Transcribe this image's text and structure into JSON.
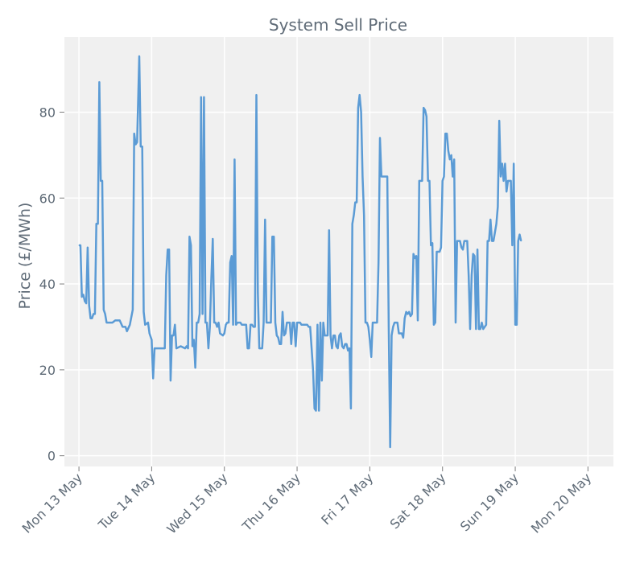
{
  "chart_data": {
    "type": "line",
    "title": "System Sell Price",
    "xlabel": "",
    "ylabel": "Price (£/MWh)",
    "ylim": [
      -2.5,
      97.5
    ],
    "yticks": [
      0,
      20,
      40,
      60,
      80
    ],
    "xlim": [
      -0.2,
      7.35
    ],
    "xticks": [
      {
        "value": 0,
        "label": "Mon 13 May"
      },
      {
        "value": 1,
        "label": "Tue 14 May"
      },
      {
        "value": 2,
        "label": "Wed 15 May"
      },
      {
        "value": 3,
        "label": "Thu 16 May"
      },
      {
        "value": 4,
        "label": "Fri 17 May"
      },
      {
        "value": 5,
        "label": "Sat 18 May"
      },
      {
        "value": 6,
        "label": "Sun 19 May"
      },
      {
        "value": 7,
        "label": "Mon 20 May"
      }
    ],
    "grid": true,
    "series": [
      {
        "name": "System Sell Price",
        "color": "#5b9bd5",
        "points": [
          [
            0.0,
            49
          ],
          [
            0.02,
            49
          ],
          [
            0.04,
            37
          ],
          [
            0.06,
            37.5
          ],
          [
            0.08,
            36
          ],
          [
            0.1,
            35.5
          ],
          [
            0.12,
            48.5
          ],
          [
            0.14,
            35
          ],
          [
            0.16,
            32
          ],
          [
            0.18,
            32
          ],
          [
            0.2,
            33
          ],
          [
            0.22,
            33
          ],
          [
            0.24,
            54
          ],
          [
            0.26,
            54
          ],
          [
            0.28,
            87
          ],
          [
            0.3,
            64
          ],
          [
            0.32,
            64
          ],
          [
            0.34,
            34
          ],
          [
            0.36,
            33
          ],
          [
            0.38,
            31
          ],
          [
            0.42,
            31
          ],
          [
            0.46,
            31
          ],
          [
            0.5,
            31.5
          ],
          [
            0.56,
            31.5
          ],
          [
            0.6,
            30
          ],
          [
            0.64,
            30
          ],
          [
            0.66,
            29
          ],
          [
            0.7,
            30.5
          ],
          [
            0.74,
            34
          ],
          [
            0.76,
            75
          ],
          [
            0.78,
            72.5
          ],
          [
            0.8,
            73
          ],
          [
            0.83,
            93
          ],
          [
            0.85,
            72
          ],
          [
            0.87,
            72
          ],
          [
            0.89,
            33.5
          ],
          [
            0.91,
            30.5
          ],
          [
            0.95,
            31
          ],
          [
            0.97,
            28.5
          ],
          [
            1.0,
            27
          ],
          [
            1.02,
            18
          ],
          [
            1.04,
            25
          ],
          [
            1.1,
            25
          ],
          [
            1.16,
            25
          ],
          [
            1.18,
            25
          ],
          [
            1.2,
            42
          ],
          [
            1.22,
            48
          ],
          [
            1.24,
            48
          ],
          [
            1.26,
            17.5
          ],
          [
            1.28,
            28
          ],
          [
            1.3,
            28
          ],
          [
            1.32,
            30.5
          ],
          [
            1.34,
            25
          ],
          [
            1.4,
            25.5
          ],
          [
            1.46,
            25
          ],
          [
            1.48,
            25.5
          ],
          [
            1.5,
            25
          ],
          [
            1.52,
            51
          ],
          [
            1.54,
            49
          ],
          [
            1.56,
            25.5
          ],
          [
            1.58,
            27
          ],
          [
            1.6,
            20.5
          ],
          [
            1.62,
            31
          ],
          [
            1.64,
            31
          ],
          [
            1.66,
            33
          ],
          [
            1.68,
            83.5
          ],
          [
            1.7,
            33
          ],
          [
            1.72,
            83.5
          ],
          [
            1.74,
            31
          ],
          [
            1.76,
            31
          ],
          [
            1.78,
            25
          ],
          [
            1.8,
            30
          ],
          [
            1.82,
            41
          ],
          [
            1.84,
            50.5
          ],
          [
            1.86,
            31
          ],
          [
            1.88,
            31
          ],
          [
            1.9,
            30
          ],
          [
            1.92,
            31
          ],
          [
            1.94,
            28.5
          ],
          [
            1.98,
            28
          ],
          [
            2.0,
            28.5
          ],
          [
            2.02,
            30.5
          ],
          [
            2.04,
            31
          ],
          [
            2.06,
            31
          ],
          [
            2.08,
            45
          ],
          [
            2.1,
            46.5
          ],
          [
            2.12,
            30.5
          ],
          [
            2.14,
            69
          ],
          [
            2.16,
            30.5
          ],
          [
            2.18,
            31
          ],
          [
            2.22,
            31
          ],
          [
            2.24,
            30.5
          ],
          [
            2.26,
            30.5
          ],
          [
            2.3,
            30.5
          ],
          [
            2.32,
            25
          ],
          [
            2.34,
            25
          ],
          [
            2.36,
            30.5
          ],
          [
            2.38,
            30.5
          ],
          [
            2.4,
            30
          ],
          [
            2.42,
            30
          ],
          [
            2.44,
            84
          ],
          [
            2.46,
            38
          ],
          [
            2.48,
            25
          ],
          [
            2.52,
            25
          ],
          [
            2.54,
            31
          ],
          [
            2.56,
            55
          ],
          [
            2.58,
            31
          ],
          [
            2.6,
            31
          ],
          [
            2.64,
            31
          ],
          [
            2.66,
            51
          ],
          [
            2.68,
            51
          ],
          [
            2.7,
            31
          ],
          [
            2.72,
            28
          ],
          [
            2.74,
            27.5
          ],
          [
            2.76,
            26
          ],
          [
            2.78,
            26
          ],
          [
            2.8,
            33.5
          ],
          [
            2.82,
            28
          ],
          [
            2.84,
            28.5
          ],
          [
            2.86,
            31
          ],
          [
            2.9,
            31
          ],
          [
            2.92,
            26
          ],
          [
            2.94,
            31
          ],
          [
            2.96,
            31
          ],
          [
            2.98,
            25.5
          ],
          [
            3.0,
            31
          ],
          [
            3.04,
            31
          ],
          [
            3.06,
            30.5
          ],
          [
            3.1,
            30.5
          ],
          [
            3.14,
            30.5
          ],
          [
            3.16,
            30
          ],
          [
            3.18,
            30
          ],
          [
            3.2,
            25
          ],
          [
            3.22,
            20
          ],
          [
            3.24,
            11
          ],
          [
            3.26,
            10.5
          ],
          [
            3.28,
            30.5
          ],
          [
            3.3,
            10.5
          ],
          [
            3.32,
            31
          ],
          [
            3.34,
            17.5
          ],
          [
            3.36,
            31
          ],
          [
            3.38,
            28
          ],
          [
            3.4,
            28
          ],
          [
            3.42,
            28
          ],
          [
            3.44,
            52.5
          ],
          [
            3.46,
            28
          ],
          [
            3.48,
            25
          ],
          [
            3.5,
            28
          ],
          [
            3.52,
            28
          ],
          [
            3.54,
            25.5
          ],
          [
            3.56,
            25
          ],
          [
            3.58,
            28
          ],
          [
            3.6,
            28.5
          ],
          [
            3.62,
            25.5
          ],
          [
            3.64,
            25
          ],
          [
            3.66,
            26
          ],
          [
            3.68,
            26
          ],
          [
            3.7,
            24.5
          ],
          [
            3.72,
            25
          ],
          [
            3.74,
            11
          ],
          [
            3.76,
            54
          ],
          [
            3.78,
            56
          ],
          [
            3.8,
            59
          ],
          [
            3.82,
            59
          ],
          [
            3.84,
            81
          ],
          [
            3.86,
            84
          ],
          [
            3.88,
            80
          ],
          [
            3.9,
            65
          ],
          [
            3.92,
            56
          ],
          [
            3.94,
            31
          ],
          [
            3.96,
            31
          ],
          [
            3.98,
            30
          ],
          [
            4.0,
            27
          ],
          [
            4.02,
            23
          ],
          [
            4.04,
            31
          ],
          [
            4.06,
            31
          ],
          [
            4.1,
            31
          ],
          [
            4.12,
            45
          ],
          [
            4.14,
            74
          ],
          [
            4.16,
            65
          ],
          [
            4.18,
            65
          ],
          [
            4.22,
            65
          ],
          [
            4.24,
            65
          ],
          [
            4.26,
            30
          ],
          [
            4.28,
            2
          ],
          [
            4.3,
            28
          ],
          [
            4.32,
            30
          ],
          [
            4.34,
            31
          ],
          [
            4.38,
            31
          ],
          [
            4.4,
            28.5
          ],
          [
            4.44,
            28.5
          ],
          [
            4.46,
            27.5
          ],
          [
            4.48,
            32
          ],
          [
            4.5,
            33.5
          ],
          [
            4.52,
            33
          ],
          [
            4.54,
            33.5
          ],
          [
            4.56,
            32.5
          ],
          [
            4.58,
            33
          ],
          [
            4.6,
            47
          ],
          [
            4.62,
            46
          ],
          [
            4.64,
            46.5
          ],
          [
            4.66,
            31.5
          ],
          [
            4.68,
            64
          ],
          [
            4.7,
            64
          ],
          [
            4.72,
            64
          ],
          [
            4.74,
            81
          ],
          [
            4.76,
            80.5
          ],
          [
            4.78,
            79
          ],
          [
            4.8,
            64
          ],
          [
            4.82,
            64
          ],
          [
            4.84,
            49
          ],
          [
            4.86,
            49.5
          ],
          [
            4.88,
            30.5
          ],
          [
            4.9,
            31
          ],
          [
            4.92,
            47.5
          ],
          [
            4.96,
            47.5
          ],
          [
            4.98,
            48.5
          ],
          [
            5.0,
            64
          ],
          [
            5.02,
            65
          ],
          [
            5.04,
            75
          ],
          [
            5.06,
            75
          ],
          [
            5.08,
            71
          ],
          [
            5.1,
            69
          ],
          [
            5.12,
            70
          ],
          [
            5.14,
            65
          ],
          [
            5.16,
            69
          ],
          [
            5.18,
            31
          ],
          [
            5.2,
            50
          ],
          [
            5.24,
            50
          ],
          [
            5.26,
            48.5
          ],
          [
            5.28,
            48
          ],
          [
            5.3,
            50
          ],
          [
            5.34,
            50
          ],
          [
            5.36,
            42
          ],
          [
            5.38,
            29.5
          ],
          [
            5.4,
            42
          ],
          [
            5.42,
            47
          ],
          [
            5.44,
            46.5
          ],
          [
            5.46,
            29.5
          ],
          [
            5.48,
            48
          ],
          [
            5.5,
            29.5
          ],
          [
            5.52,
            29.5
          ],
          [
            5.54,
            31
          ],
          [
            5.56,
            29.5
          ],
          [
            5.6,
            30.5
          ],
          [
            5.62,
            50
          ],
          [
            5.64,
            50
          ],
          [
            5.66,
            55
          ],
          [
            5.68,
            50
          ],
          [
            5.7,
            50
          ],
          [
            5.72,
            52
          ],
          [
            5.74,
            54
          ],
          [
            5.76,
            58
          ],
          [
            5.78,
            78
          ],
          [
            5.8,
            65
          ],
          [
            5.82,
            68
          ],
          [
            5.84,
            64
          ],
          [
            5.86,
            68
          ],
          [
            5.88,
            61.5
          ],
          [
            5.9,
            64
          ],
          [
            5.94,
            64
          ],
          [
            5.96,
            49
          ],
          [
            5.98,
            68
          ],
          [
            6.0,
            30.5
          ],
          [
            6.02,
            30.5
          ],
          [
            6.04,
            50
          ],
          [
            6.06,
            51.5
          ],
          [
            6.08,
            50
          ]
        ]
      }
    ]
  }
}
